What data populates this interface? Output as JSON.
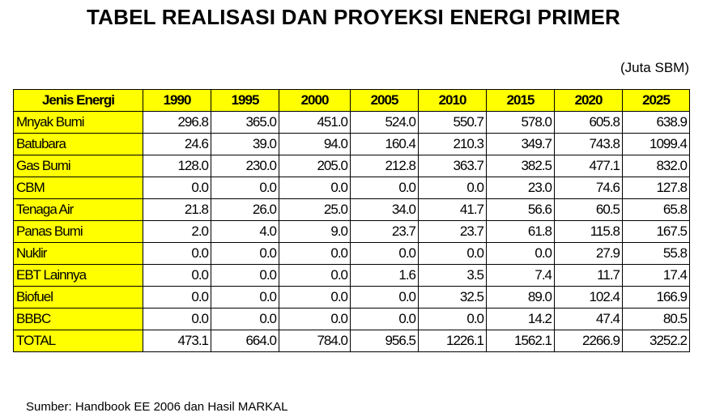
{
  "title": "TABEL REALISASI DAN PROYEKSI ENERGI PRIMER",
  "unit": "(Juta SBM)",
  "table": {
    "headers": [
      "Jenis Energi",
      "1990",
      "1995",
      "2000",
      "2005",
      "2010",
      "2015",
      "2020",
      "2025"
    ],
    "rows": [
      [
        "Mnyak Bumi",
        "296.8",
        "365.0",
        "451.0",
        "524.0",
        "550.7",
        "578.0",
        "605.8",
        "638.9"
      ],
      [
        "Batubara",
        "24.6",
        "39.0",
        "94.0",
        "160.4",
        "210.3",
        "349.7",
        "743.8",
        "1099.4"
      ],
      [
        "Gas  Bumi",
        "128.0",
        "230.0",
        "205.0",
        "212.8",
        "363.7",
        "382.5",
        "477.1",
        "832.0"
      ],
      [
        "CBM",
        "0.0",
        "0.0",
        "0.0",
        "0.0",
        "0.0",
        "23.0",
        "74.6",
        "127.8"
      ],
      [
        "Tenaga Air",
        "21.8",
        "26.0",
        "25.0",
        "34.0",
        "41.7",
        "56.6",
        "60.5",
        "65.8"
      ],
      [
        "Panas Bumi",
        "2.0",
        "4.0",
        "9.0",
        "23.7",
        "23.7",
        "61.8",
        "115.8",
        "167.5"
      ],
      [
        "Nuklir",
        "0.0",
        "0.0",
        "0.0",
        "0.0",
        "0.0",
        "0.0",
        "27.9",
        "55.8"
      ],
      [
        "EBT Lainnya",
        "0.0",
        "0.0",
        "0.0",
        "1.6",
        "3.5",
        "7.4",
        "11.7",
        "17.4"
      ],
      [
        "Biofuel",
        "0.0",
        "0.0",
        "0.0",
        "0.0",
        "32.5",
        "89.0",
        "102.4",
        "166.9"
      ],
      [
        "BBBC",
        "0.0",
        "0.0",
        "0.0",
        "0.0",
        "0.0",
        "14.2",
        "47.4",
        "80.5"
      ],
      [
        "TOTAL",
        "473.1",
        "664.0",
        "784.0",
        "956.5",
        "1226.1",
        "1562.1",
        "2266.9",
        "3252.2"
      ]
    ]
  },
  "source": "Sumber: Handbook EE 2006 dan Hasil MARKAL",
  "colors": {
    "header_bg": "#ffff00",
    "name_bg": "#ffff00",
    "border": "#000000"
  }
}
